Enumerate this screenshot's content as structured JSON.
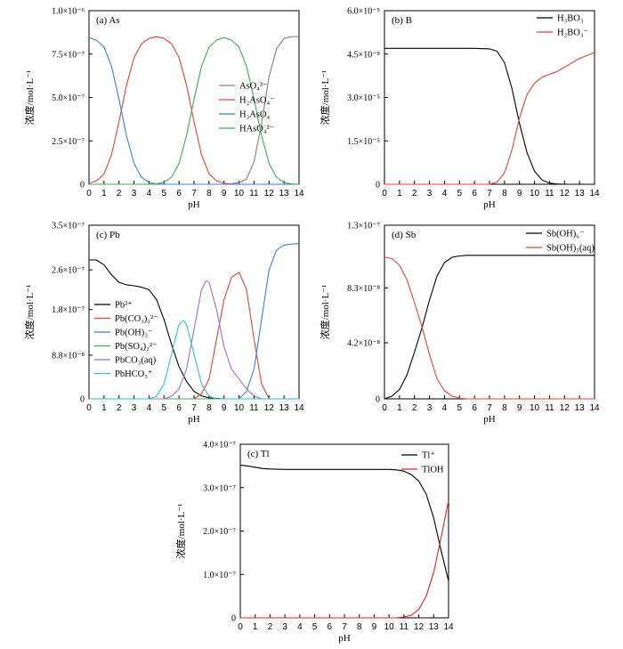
{
  "chart_data": [
    {
      "type": "line",
      "panel_label": "(a) As",
      "xlabel": "pH",
      "ylabel": "浓度/mol·L⁻¹",
      "xlim": [
        0,
        14
      ],
      "ylim": [
        0,
        1e-06
      ],
      "xticks": [
        0,
        1,
        2,
        3,
        4,
        5,
        6,
        7,
        8,
        9,
        10,
        11,
        12,
        13,
        14
      ],
      "yticks": [
        0,
        2.5e-07,
        5e-07,
        7.5e-07,
        1e-06
      ],
      "ytick_labels": [
        "0",
        "2.5×10⁻⁷",
        "5.0×10⁻⁷",
        "7.5×10⁻⁷",
        "1.0×10⁻⁶"
      ],
      "legend_position": "center-right",
      "series": [
        {
          "name": "AsO₄³⁻",
          "color": "#7f7f7f",
          "x": [
            0,
            4,
            6,
            8,
            9,
            9.5,
            10,
            10.5,
            11,
            11.5,
            12,
            12.5,
            13,
            13.5,
            14
          ],
          "y": [
            0,
            0,
            0,
            0,
            0,
            3e-09,
            1e-08,
            3e-08,
            1.3e-07,
            3.5e-07,
            6.2e-07,
            7.8e-07,
            8.4e-07,
            8.5e-07,
            8.5e-07
          ]
        },
        {
          "name": "H₂AsO₄⁻",
          "color": "#e8413a",
          "x": [
            0,
            0.5,
            1,
            1.5,
            2,
            2.5,
            3,
            3.5,
            4,
            4.5,
            5,
            5.5,
            6,
            6.5,
            7,
            7.5,
            8,
            8.5,
            9,
            10,
            14
          ],
          "y": [
            5e-09,
            2e-08,
            6e-08,
            1.7e-07,
            3.6e-07,
            5.7e-07,
            7.3e-07,
            8.1e-07,
            8.4e-07,
            8.5e-07,
            8.4e-07,
            8.1e-07,
            7.3e-07,
            5.7e-07,
            3.6e-07,
            1.7e-07,
            6e-08,
            2e-08,
            5e-09,
            0,
            0
          ]
        },
        {
          "name": "H₃AsO₄",
          "color": "#3f7fcf",
          "x": [
            0,
            0.5,
            1,
            1.5,
            2,
            2.5,
            3,
            3.5,
            4,
            4.5,
            5,
            14
          ],
          "y": [
            8.45e-07,
            8.3e-07,
            7.9e-07,
            6.8e-07,
            4.9e-07,
            2.8e-07,
            1.2e-07,
            4e-08,
            1e-08,
            2e-09,
            0,
            0
          ]
        },
        {
          "name": "HAsO₄²⁻",
          "color": "#3faa5a",
          "x": [
            0,
            4,
            4.5,
            5,
            5.5,
            6,
            6.5,
            7,
            7.5,
            8,
            8.5,
            9,
            9.5,
            10,
            10.5,
            11,
            11.5,
            12,
            12.5,
            13,
            13.5,
            14
          ],
          "y": [
            0,
            0,
            3e-09,
            1.2e-08,
            4e-08,
            1.2e-07,
            2.8e-07,
            4.9e-07,
            6.8e-07,
            7.9e-07,
            8.3e-07,
            8.45e-07,
            8.3e-07,
            7.9e-07,
            6.8e-07,
            4.9e-07,
            2.8e-07,
            1.2e-07,
            4e-08,
            1e-08,
            2e-09,
            0
          ]
        }
      ]
    },
    {
      "type": "line",
      "panel_label": "(b) B",
      "xlabel": "pH",
      "ylabel": "浓度/mol·L⁻¹",
      "xlim": [
        0,
        14
      ],
      "ylim": [
        0,
        6e-05
      ],
      "xticks": [
        0,
        1,
        2,
        3,
        4,
        5,
        6,
        7,
        8,
        9,
        10,
        11,
        12,
        13,
        14
      ],
      "yticks": [
        0,
        1.5e-05,
        3e-05,
        4.5e-05,
        6e-05
      ],
      "ytick_labels": [
        "0",
        "1.5×10⁻⁵",
        "3.0×10⁻⁵",
        "4.5×10⁻⁵",
        "6.0×10⁻⁵"
      ],
      "legend_position": "top-right",
      "series": [
        {
          "name": "H₃BO₃",
          "color": "#000000",
          "x": [
            0,
            6,
            7,
            7.5,
            8,
            8.5,
            9,
            9.5,
            10,
            10.5,
            11,
            11.5,
            12,
            14
          ],
          "y": [
            4.7e-05,
            4.7e-05,
            4.68e-05,
            4.6e-05,
            4.2e-05,
            3.3e-05,
            2.1e-05,
            1.1e-05,
            4.5e-06,
            1.5e-06,
            4e-07,
            1e-07,
            0,
            0
          ]
        },
        {
          "name": "H₂BO₃⁻",
          "color": "#e8413a",
          "x": [
            0,
            7,
            7.5,
            8,
            8.5,
            9,
            9.5,
            10,
            10.5,
            11,
            11.5,
            12,
            12.5,
            13,
            13.5,
            14
          ],
          "y": [
            0,
            0,
            7e-07,
            4e-06,
            1.2e-05,
            2.3e-05,
            3.1e-05,
            3.5e-05,
            3.7e-05,
            3.8e-05,
            3.9e-05,
            4.05e-05,
            4.2e-05,
            4.35e-05,
            4.45e-05,
            4.55e-05
          ]
        }
      ]
    },
    {
      "type": "line",
      "panel_label": "(c) Pb",
      "xlabel": "pH",
      "ylabel": "浓度/mol·L⁻¹",
      "xlim": [
        0,
        14
      ],
      "ylim": [
        0,
        3.5e-07
      ],
      "xticks": [
        0,
        1,
        2,
        3,
        4,
        5,
        6,
        7,
        8,
        9,
        10,
        11,
        12,
        13,
        14
      ],
      "yticks": [
        0,
        8.8e-08,
        1.8e-07,
        2.6e-07,
        3.5e-07
      ],
      "ytick_labels": [
        "0",
        "8.8×10⁻⁸",
        "1.8×10⁻⁷",
        "2.6×10⁻⁷",
        "3.5×10⁻⁷"
      ],
      "legend_position": "left",
      "series": [
        {
          "name": "Pb²⁺",
          "color": "#000000",
          "x": [
            0,
            0.5,
            1,
            1.5,
            2,
            2.5,
            3,
            3.5,
            4,
            4.5,
            5,
            5.5,
            6,
            6.5,
            7,
            7.5,
            8,
            9,
            10,
            14
          ],
          "y": [
            2.8e-07,
            2.8e-07,
            2.7e-07,
            2.5e-07,
            2.35e-07,
            2.3e-07,
            2.28e-07,
            2.25e-07,
            2.2e-07,
            2e-07,
            1.6e-07,
            1.1e-07,
            6.5e-08,
            3.5e-08,
            1.5e-08,
            6e-09,
            2e-09,
            0,
            0,
            0
          ]
        },
        {
          "name": "Pb(CO₃)₂²⁻",
          "color": "#e8413a",
          "x": [
            0,
            7,
            7.5,
            8,
            8.5,
            9,
            9.5,
            10,
            10.5,
            11,
            11.5,
            12,
            14
          ],
          "y": [
            0,
            0,
            1e-08,
            4e-08,
            1.2e-07,
            2e-07,
            2.45e-07,
            2.55e-07,
            2.2e-07,
            1.2e-07,
            3e-08,
            0,
            0
          ]
        },
        {
          "name": "Pb(OH)₃⁻",
          "color": "#3f7fcf",
          "x": [
            0,
            10,
            10.5,
            11,
            11.5,
            12,
            12.5,
            13,
            13.5,
            14
          ],
          "y": [
            0,
            0,
            1.5e-08,
            6e-08,
            1.6e-07,
            2.6e-07,
            3e-07,
            3.1e-07,
            3.12e-07,
            3.13e-07
          ]
        },
        {
          "name": "Pb(SO₄)₂²⁻",
          "color": "#3faa5a",
          "x": [
            0,
            14
          ],
          "y": [
            0,
            0
          ]
        },
        {
          "name": "PbCO₃(aq)",
          "color": "#a070cf",
          "x": [
            0,
            5,
            5.5,
            6,
            6.5,
            7,
            7.5,
            7.8,
            8,
            8.5,
            9,
            9.5,
            10,
            10.5,
            11,
            11.5,
            12,
            14
          ],
          "y": [
            0,
            0,
            5e-09,
            2e-08,
            6e-08,
            1.4e-07,
            2.2e-07,
            2.38e-07,
            2.35e-07,
            1.8e-07,
            1.05e-07,
            6e-08,
            4e-08,
            2e-08,
            6e-09,
            0,
            0,
            0
          ]
        },
        {
          "name": "PbHCO₃⁺",
          "color": "#2ec4c4",
          "x": [
            0,
            4,
            4.5,
            5,
            5.5,
            6,
            6.3,
            6.5,
            7,
            7.5,
            8,
            8.5,
            9,
            14
          ],
          "y": [
            0,
            0,
            5e-09,
            3e-08,
            9e-08,
            1.5e-07,
            1.58e-07,
            1.5e-07,
            9e-08,
            3e-08,
            5e-09,
            0,
            0,
            0
          ]
        }
      ]
    },
    {
      "type": "line",
      "panel_label": "(d) Sb",
      "xlabel": "pH",
      "ylabel": "浓度/mol·L⁻¹",
      "xlim": [
        0,
        14
      ],
      "ylim": [
        0,
        1.3e-07
      ],
      "xticks": [
        0,
        1,
        2,
        3,
        4,
        5,
        6,
        7,
        8,
        9,
        10,
        11,
        12,
        13,
        14
      ],
      "yticks": [
        0,
        4.2e-08,
        8.3e-08,
        1.3e-07
      ],
      "ytick_labels": [
        "0",
        "4.2×10⁻⁸",
        "8.3×10⁻⁸",
        "1.3×10⁻⁷"
      ],
      "legend_position": "top-right",
      "series": [
        {
          "name": "Sb(OH)₆⁻",
          "color": "#000000",
          "x": [
            0,
            0.5,
            1,
            1.5,
            2,
            2.5,
            3,
            3.5,
            4,
            4.5,
            5,
            5.5,
            6,
            14
          ],
          "y": [
            0,
            2e-09,
            7e-09,
            1.8e-08,
            3.5e-08,
            5.3e-08,
            7.4e-08,
            9.2e-08,
            1.02e-07,
            1.06e-07,
            1.07e-07,
            1.075e-07,
            1.075e-07,
            1.075e-07
          ]
        },
        {
          "name": "Sb(OH)₅(aq)",
          "color": "#e8413a",
          "x": [
            0,
            0.5,
            1,
            1.5,
            2,
            2.5,
            3,
            3.5,
            4,
            4.5,
            5,
            5.5,
            6,
            14
          ],
          "y": [
            1.06e-07,
            1.05e-07,
            1e-07,
            8.9e-08,
            7.2e-08,
            5.4e-08,
            3.3e-08,
            1.5e-08,
            6e-09,
            2e-09,
            5e-10,
            0,
            0,
            0
          ]
        }
      ]
    },
    {
      "type": "line",
      "panel_label": "(c) Tl",
      "xlabel": "pH",
      "ylabel": "浓度/mol·L⁻¹",
      "xlim": [
        0,
        14
      ],
      "ylim": [
        0,
        4e-07
      ],
      "xticks": [
        0,
        1,
        2,
        3,
        4,
        5,
        6,
        7,
        8,
        9,
        10,
        11,
        12,
        13,
        14
      ],
      "yticks": [
        0,
        1e-07,
        2e-07,
        3e-07,
        4e-07
      ],
      "ytick_labels": [
        "0",
        "1.0×10⁻⁷",
        "2.0×10⁻⁷",
        "3.0×10⁻⁷",
        "4.0×10⁻⁷"
      ],
      "legend_position": "top-right",
      "series": [
        {
          "name": "Tl⁺",
          "color": "#000000",
          "x": [
            0,
            0.5,
            1,
            1.5,
            2,
            3,
            4,
            5,
            6,
            7,
            8,
            9,
            10,
            10.5,
            11,
            11.5,
            12,
            12.5,
            13,
            13.5,
            14
          ],
          "y": [
            3.52e-07,
            3.5e-07,
            3.47e-07,
            3.44e-07,
            3.43e-07,
            3.42e-07,
            3.42e-07,
            3.42e-07,
            3.42e-07,
            3.42e-07,
            3.42e-07,
            3.42e-07,
            3.42e-07,
            3.41e-07,
            3.38e-07,
            3.3e-07,
            3.15e-07,
            2.85e-07,
            2.3e-07,
            1.55e-07,
            8.5e-08
          ]
        },
        {
          "name": "TlOH",
          "color": "#e8202a",
          "x": [
            0,
            10,
            10.5,
            11,
            11.5,
            12,
            12.5,
            13,
            13.5,
            14
          ],
          "y": [
            0,
            0,
            0,
            2e-09,
            6e-09,
            2e-08,
            5e-08,
            1.05e-07,
            1.85e-07,
            2.7e-07
          ]
        }
      ]
    }
  ]
}
